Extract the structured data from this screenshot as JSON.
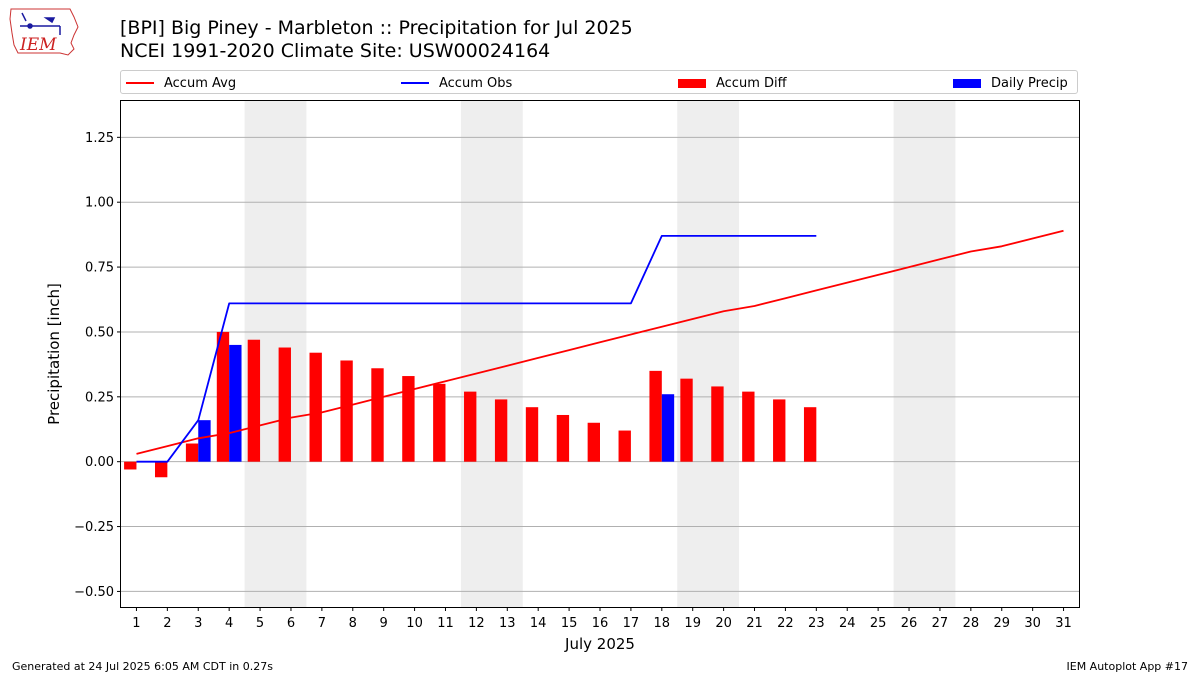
{
  "header": {
    "title_line1": "[BPI] Big Piney - Marbleton :: Precipitation for Jul 2025",
    "title_line2": "NCEI 1991-2020 Climate Site: USW00024164",
    "logo_text": "IEM"
  },
  "footer": {
    "left": "Generated at 24 Jul 2025 6:05 AM CDT in 0.27s",
    "right": "IEM Autoplot App #17"
  },
  "legend": {
    "placement": "top, above plot",
    "items": [
      {
        "label": "Accum Avg",
        "kind": "line",
        "color": "#ff0000"
      },
      {
        "label": "Accum Obs",
        "kind": "line",
        "color": "#0000ff"
      },
      {
        "label": "Accum Diff",
        "kind": "bar",
        "color": "#ff0000"
      },
      {
        "label": "Daily Precip",
        "kind": "bar",
        "color": "#0000ff"
      }
    ]
  },
  "chart_data": {
    "type": "bar",
    "title": "[BPI] Big Piney - Marbleton :: Precipitation for Jul 2025",
    "subtitle": "NCEI 1991-2020 Climate Site: USW00024164",
    "xlabel": "July 2025",
    "ylabel": "Precipitation [inch]",
    "x": [
      1,
      2,
      3,
      4,
      5,
      6,
      7,
      8,
      9,
      10,
      11,
      12,
      13,
      14,
      15,
      16,
      17,
      18,
      19,
      20,
      21,
      22,
      23,
      24,
      25,
      26,
      27,
      28,
      29,
      30,
      31
    ],
    "xlim": [
      0.5,
      31.5
    ],
    "ylim": [
      -0.56,
      1.39
    ],
    "yticks": [
      -0.5,
      -0.25,
      0,
      0.25,
      0.5,
      0.75,
      1.0,
      1.25
    ],
    "ytick_labels": [
      "−0.50",
      "−0.25",
      "0.00",
      "0.25",
      "0.50",
      "0.75",
      "1.00",
      "1.25"
    ],
    "grid": "horizontal",
    "weekend_shading": [
      [
        4.5,
        6.5
      ],
      [
        11.5,
        13.5
      ],
      [
        18.5,
        20.5
      ],
      [
        25.5,
        27.5
      ]
    ],
    "series": [
      {
        "name": "Accum Avg",
        "type": "line",
        "color": "#ff0000",
        "x": [
          1,
          2,
          3,
          4,
          5,
          6,
          7,
          8,
          9,
          10,
          11,
          12,
          13,
          14,
          15,
          16,
          17,
          18,
          19,
          20,
          21,
          22,
          23,
          24,
          25,
          26,
          27,
          28,
          29,
          30,
          31
        ],
        "values": [
          0.03,
          0.06,
          0.09,
          0.11,
          0.14,
          0.17,
          0.19,
          0.22,
          0.25,
          0.28,
          0.31,
          0.34,
          0.37,
          0.4,
          0.43,
          0.46,
          0.49,
          0.52,
          0.55,
          0.58,
          0.6,
          0.63,
          0.66,
          0.69,
          0.72,
          0.75,
          0.78,
          0.81,
          0.83,
          0.86,
          0.89
        ]
      },
      {
        "name": "Accum Obs",
        "type": "line",
        "color": "#0000ff",
        "x": [
          1,
          2,
          3,
          4,
          5,
          6,
          7,
          8,
          9,
          10,
          11,
          12,
          13,
          14,
          15,
          16,
          17,
          18,
          19,
          20,
          21,
          22,
          23
        ],
        "values": [
          0.0,
          0.0,
          0.16,
          0.61,
          0.61,
          0.61,
          0.61,
          0.61,
          0.61,
          0.61,
          0.61,
          0.61,
          0.61,
          0.61,
          0.61,
          0.61,
          0.61,
          0.87,
          0.87,
          0.87,
          0.87,
          0.87,
          0.87
        ]
      },
      {
        "name": "Accum Diff",
        "type": "bar",
        "color": "#ff0000",
        "x": [
          1,
          2,
          3,
          4,
          5,
          6,
          7,
          8,
          9,
          10,
          11,
          12,
          13,
          14,
          15,
          16,
          17,
          18,
          19,
          20,
          21,
          22,
          23
        ],
        "values": [
          -0.03,
          -0.06,
          0.07,
          0.5,
          0.47,
          0.44,
          0.42,
          0.39,
          0.36,
          0.33,
          0.3,
          0.27,
          0.24,
          0.21,
          0.18,
          0.15,
          0.12,
          0.35,
          0.32,
          0.29,
          0.27,
          0.24,
          0.21
        ]
      },
      {
        "name": "Daily Precip",
        "type": "bar",
        "color": "#0000ff",
        "x": [
          3,
          4,
          18
        ],
        "values": [
          0.16,
          0.45,
          0.26
        ]
      }
    ]
  }
}
